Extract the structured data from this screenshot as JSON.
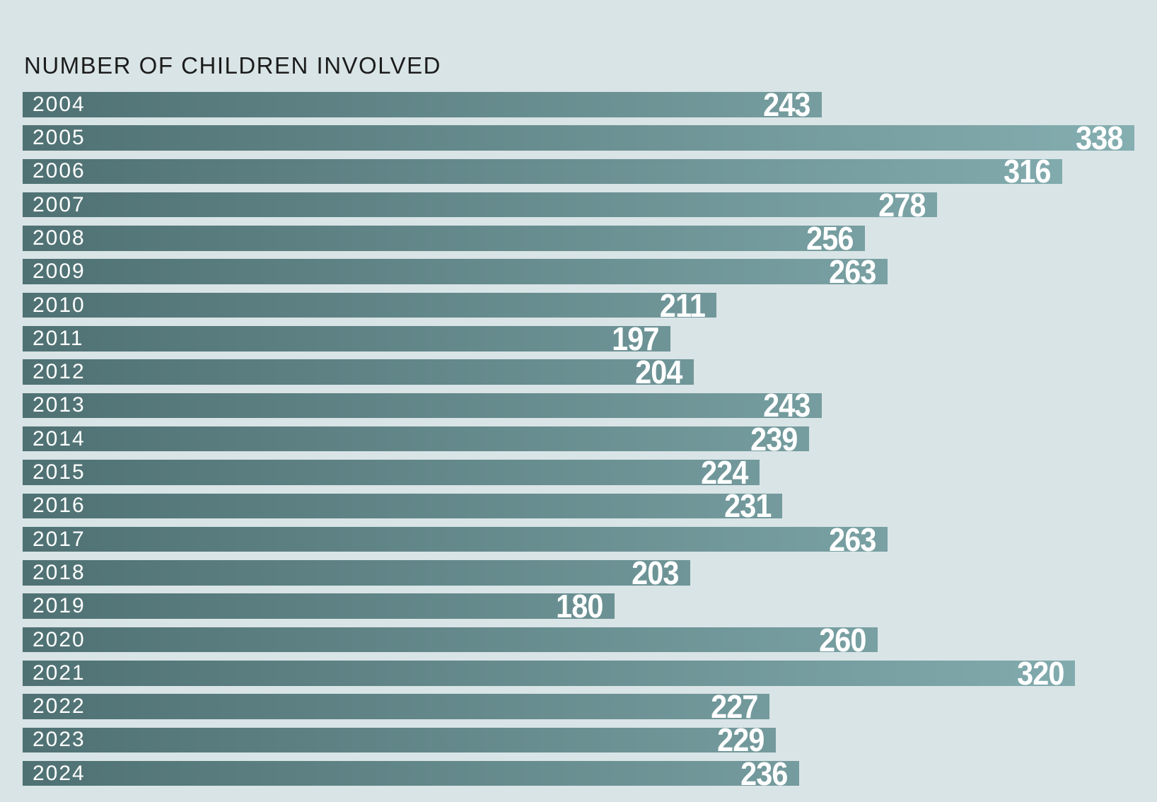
{
  "title": "NUMBER OF CHILDREN INVOLVED",
  "chart_data": {
    "type": "bar",
    "orientation": "horizontal",
    "title": "NUMBER OF CHILDREN INVOLVED",
    "categories": [
      "2004",
      "2005",
      "2006",
      "2007",
      "2008",
      "2009",
      "2010",
      "2011",
      "2012",
      "2013",
      "2014",
      "2015",
      "2016",
      "2017",
      "2018",
      "2019",
      "2020",
      "2021",
      "2022",
      "2023",
      "2024"
    ],
    "values": [
      243,
      338,
      316,
      278,
      256,
      263,
      211,
      197,
      204,
      243,
      239,
      224,
      231,
      263,
      203,
      180,
      260,
      320,
      227,
      229,
      236
    ],
    "xlim": [
      0,
      338
    ],
    "grid": false,
    "legend": false,
    "value_labels": "inside-right",
    "category_labels": "inside-left",
    "colors": {
      "background": "#d9e4e6",
      "bar_gradient_left": "#4f7173",
      "bar_gradient_right": "#85aeb1",
      "title_text": "#1c1c1c",
      "bar_label_text": "#ffffff"
    }
  }
}
